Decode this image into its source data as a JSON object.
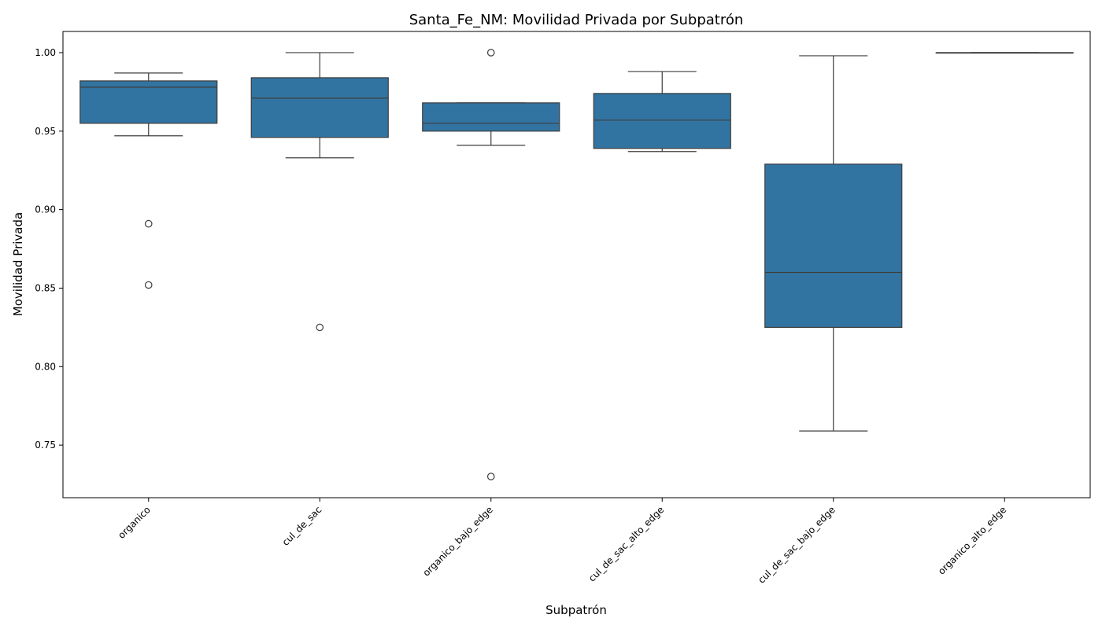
{
  "chart_data": {
    "type": "box",
    "title": "Santa_Fe_NM: Movilidad Privada por Subpatrón",
    "xlabel": "Subpatrón",
    "ylabel": "Movilidad Privada",
    "ylim": [
      0.7165,
      1.0135
    ],
    "yticks": [
      0.75,
      0.8,
      0.85,
      0.9,
      0.95,
      1.0
    ],
    "ytick_labels": [
      "0.75",
      "0.80",
      "0.85",
      "0.90",
      "0.95",
      "1.00"
    ],
    "grid": false,
    "box_color": "#3274a1",
    "line_color": "#3d3d3d",
    "categories": [
      "organico",
      "cul_de_sac",
      "organico_bajo_edge",
      "cul_de_sac_alto_edge",
      "cul_de_sac_bajo_edge",
      "organico_alto_edge"
    ],
    "boxes": [
      {
        "category": "organico",
        "whisker_low": 0.947,
        "q1": 0.955,
        "median": 0.978,
        "q3": 0.982,
        "whisker_high": 0.987,
        "outliers": [
          0.891,
          0.852
        ]
      },
      {
        "category": "cul_de_sac",
        "whisker_low": 0.933,
        "q1": 0.946,
        "median": 0.971,
        "q3": 0.984,
        "whisker_high": 1.0,
        "outliers": [
          0.825
        ]
      },
      {
        "category": "organico_bajo_edge",
        "whisker_low": 0.941,
        "q1": 0.95,
        "median": 0.955,
        "q3": 0.968,
        "whisker_high": 0.968,
        "outliers": [
          1.0,
          0.73
        ]
      },
      {
        "category": "cul_de_sac_alto_edge",
        "whisker_low": 0.937,
        "q1": 0.939,
        "median": 0.957,
        "q3": 0.974,
        "whisker_high": 0.988,
        "outliers": []
      },
      {
        "category": "cul_de_sac_bajo_edge",
        "whisker_low": 0.759,
        "q1": 0.825,
        "median": 0.86,
        "q3": 0.929,
        "whisker_high": 0.998,
        "outliers": []
      },
      {
        "category": "organico_alto_edge",
        "whisker_low": 1.0,
        "q1": 1.0,
        "median": 1.0,
        "q3": 1.0,
        "whisker_high": 1.0,
        "outliers": []
      }
    ]
  }
}
